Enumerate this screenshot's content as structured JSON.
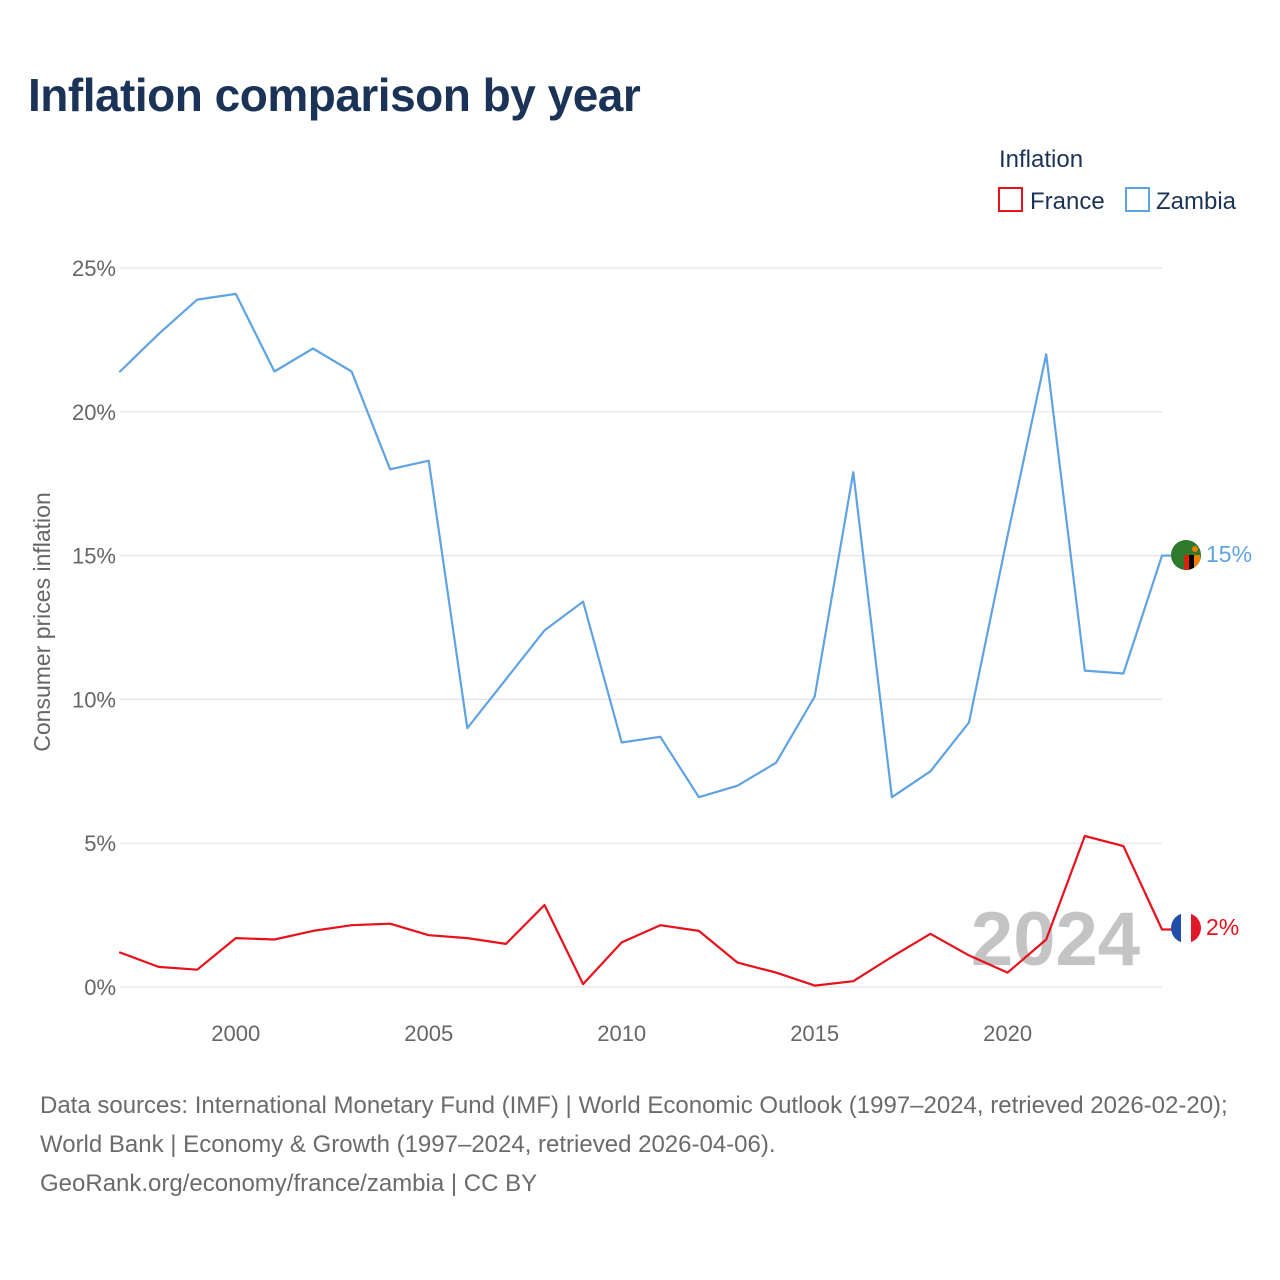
{
  "title": "Inflation comparison by year",
  "footer": {
    "sources": "Data sources: International Monetary Fund (IMF) | World Economic Outlook (1997–2024, retrieved 2026-02-20); World Bank | Economy & Growth (1997–2024, retrieved 2026-04-06).",
    "link": "GeoRank.org/economy/france/zambia | CC BY"
  },
  "chart_data": {
    "type": "line",
    "title": "Inflation comparison by year",
    "xlabel": "",
    "ylabel": "Consumer prices inflation",
    "ylim": [
      0,
      25
    ],
    "xlim": [
      1997,
      2024
    ],
    "y_ticks": [
      {
        "value": 0,
        "label": "0%"
      },
      {
        "value": 5,
        "label": "5%"
      },
      {
        "value": 10,
        "label": "10%"
      },
      {
        "value": 15,
        "label": "15%"
      },
      {
        "value": 20,
        "label": "20%"
      },
      {
        "value": 25,
        "label": "25%"
      }
    ],
    "x_ticks": [
      {
        "value": 2000,
        "label": "2000"
      },
      {
        "value": 2005,
        "label": "2005"
      },
      {
        "value": 2010,
        "label": "2010"
      },
      {
        "value": 2015,
        "label": "2015"
      },
      {
        "value": 2020,
        "label": "2020"
      }
    ],
    "grid": true,
    "legend": {
      "title": "Inflation",
      "position": "top-right"
    },
    "year_watermark": "2024",
    "x": [
      1997,
      1998,
      1999,
      2000,
      2001,
      2002,
      2003,
      2004,
      2005,
      2006,
      2007,
      2008,
      2009,
      2010,
      2011,
      2012,
      2013,
      2014,
      2015,
      2016,
      2017,
      2018,
      2019,
      2020,
      2021,
      2022,
      2023,
      2024
    ],
    "series": [
      {
        "name": "France",
        "color": "#e8101a",
        "end_label": "2%",
        "flag": "france-flag",
        "values": [
          1.2,
          0.7,
          0.6,
          1.7,
          1.65,
          1.95,
          2.15,
          2.2,
          1.8,
          1.7,
          1.5,
          2.85,
          0.1,
          1.55,
          2.15,
          1.95,
          0.85,
          0.5,
          0.05,
          0.2,
          1.05,
          1.85,
          1.1,
          0.5,
          1.65,
          5.25,
          4.9,
          2.0
        ]
      },
      {
        "name": "Zambia",
        "color": "#5fa3e3",
        "end_label": "15%",
        "flag": "zambia-flag",
        "values": [
          21.4,
          22.7,
          23.9,
          24.1,
          21.4,
          22.2,
          21.4,
          18.0,
          18.3,
          9.0,
          10.7,
          12.4,
          13.4,
          8.5,
          8.7,
          6.6,
          7.0,
          7.8,
          10.1,
          17.9,
          6.6,
          7.5,
          9.2,
          15.7,
          22.0,
          11.0,
          10.9,
          15.0
        ]
      }
    ]
  }
}
